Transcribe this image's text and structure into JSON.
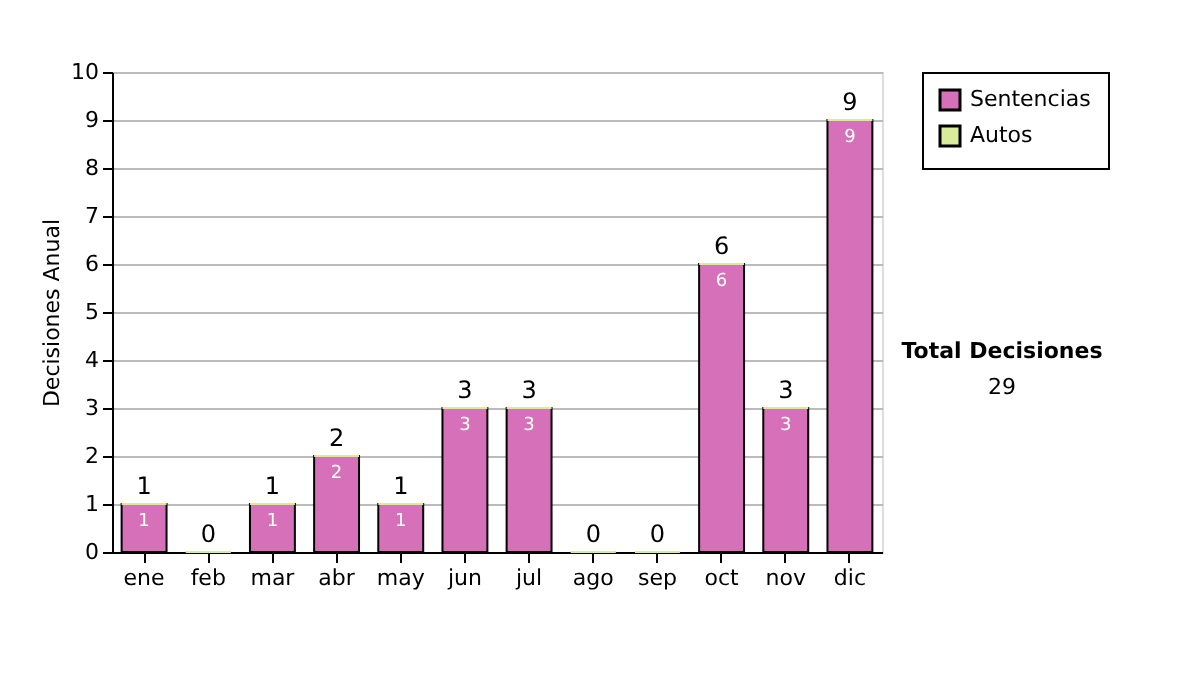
{
  "chart_data": {
    "type": "bar",
    "stacked": true,
    "ylabel": "Decisiones Anual",
    "categories": [
      "ene",
      "feb",
      "mar",
      "abr",
      "may",
      "jun",
      "jul",
      "ago",
      "sep",
      "oct",
      "nov",
      "dic"
    ],
    "series": [
      {
        "name": "Sentencias",
        "color": "#d670b8",
        "values": [
          1,
          0,
          1,
          2,
          1,
          3,
          3,
          0,
          0,
          6,
          3,
          9
        ],
        "value_labels": [
          "1",
          null,
          "1",
          "2",
          "1",
          "3",
          "3",
          null,
          null,
          "6",
          "3",
          "9"
        ]
      },
      {
        "name": "Autos",
        "color": "#d9ec9c",
        "values": [
          0,
          0,
          0,
          0,
          0,
          0,
          0,
          0,
          0,
          0,
          0,
          0
        ]
      }
    ],
    "totals": [
      "1",
      "0",
      "1",
      "2",
      "1",
      "3",
      "3",
      "0",
      "0",
      "6",
      "3",
      "9"
    ],
    "ylim": [
      0,
      10
    ],
    "yticks": [
      0,
      1,
      2,
      3,
      4,
      5,
      6,
      7,
      8,
      9,
      10
    ],
    "grid": "y",
    "legend": "right",
    "annotations": [
      "Total Decisiones",
      "29"
    ]
  }
}
